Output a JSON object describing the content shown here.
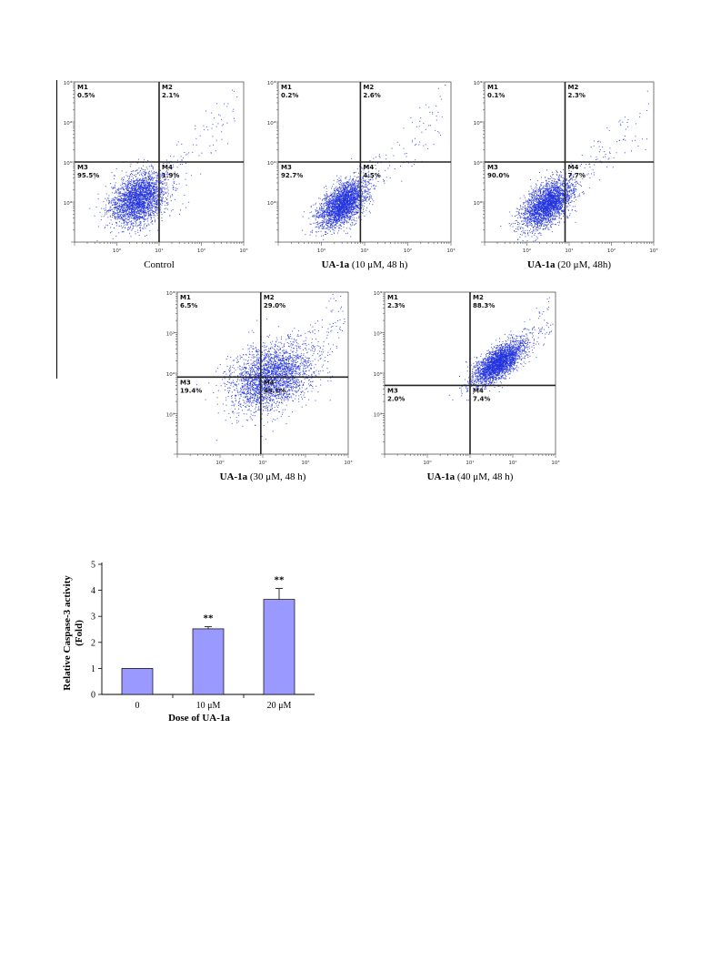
{
  "flow_panels": [
    {
      "caption_bold": "",
      "caption_rest": "Control",
      "y_ticks": [
        "10³",
        "10²",
        "10¹",
        "10⁰"
      ],
      "x_ticks": [
        "10⁰",
        "10¹",
        "10²",
        "10³"
      ],
      "quadrants": [
        {
          "label": "M1",
          "value": "0.5%"
        },
        {
          "label": "M2",
          "value": "2.1%"
        },
        {
          "label": "M3",
          "value": "95.5%"
        },
        {
          "label": "M4",
          "value": "1.9%"
        }
      ],
      "gate": {
        "x": 10,
        "y": 10
      },
      "population": {
        "cx": 3.2,
        "cy": 1.2,
        "sx": 0.33,
        "sy": 0.33,
        "rho": 0.3
      }
    },
    {
      "caption_bold": "UA-1a",
      "caption_rest": " (10 μM, 48 h)",
      "y_ticks": [
        "10³",
        "10²",
        "10¹",
        "10⁰"
      ],
      "x_ticks": [
        "10⁰",
        "10¹",
        "10²",
        "10³"
      ],
      "quadrants": [
        {
          "label": "M1",
          "value": "0.2%"
        },
        {
          "label": "M2",
          "value": "2.6%"
        },
        {
          "label": "M3",
          "value": "92.7%"
        },
        {
          "label": "M4",
          "value": "4.5%"
        }
      ],
      "gate": {
        "x": 8,
        "y": 10
      },
      "population": {
        "cx": 3.0,
        "cy": 0.9,
        "sx": 0.28,
        "sy": 0.3,
        "rho": 0.55
      }
    },
    {
      "caption_bold": "UA-1a",
      "caption_rest": " (20 μM, 48h)",
      "y_ticks": [
        "10³",
        "10²",
        "10¹",
        "10⁰"
      ],
      "x_ticks": [
        "10⁰",
        "10¹",
        "10²",
        "10³"
      ],
      "quadrants": [
        {
          "label": "M1",
          "value": "0.1%"
        },
        {
          "label": "M2",
          "value": "2.3%"
        },
        {
          "label": "M3",
          "value": "90.0%"
        },
        {
          "label": "M4",
          "value": "7.7%"
        }
      ],
      "gate": {
        "x": 8,
        "y": 10
      },
      "population": {
        "cx": 3.0,
        "cy": 0.9,
        "sx": 0.3,
        "sy": 0.32,
        "rho": 0.55
      }
    },
    {
      "caption_bold": "UA-1a",
      "caption_rest": " (30 μM, 48 h)",
      "y_ticks": [
        "10³",
        "10²",
        "10¹",
        "10⁰"
      ],
      "x_ticks": [
        "10⁰",
        "10¹",
        "10²",
        "10³"
      ],
      "quadrants": [
        {
          "label": "M1",
          "value": "6.5%"
        },
        {
          "label": "M2",
          "value": "29.0%"
        },
        {
          "label": "M3",
          "value": "19.4%"
        },
        {
          "label": "M4",
          "value": "45.1%"
        }
      ],
      "gate": {
        "x": 9,
        "y": 8
      },
      "population": {
        "cx": 15,
        "cy": 8,
        "sx": 0.48,
        "sy": 0.42,
        "rho": 0.3
      }
    },
    {
      "caption_bold": "UA-1a",
      "caption_rest": " (40 μM, 48 h)",
      "y_ticks": [
        "10³",
        "10²",
        "10¹",
        "10⁰"
      ],
      "x_ticks": [
        "10⁰",
        "10¹",
        "10²",
        "10³"
      ],
      "quadrants": [
        {
          "label": "M1",
          "value": "2.3%"
        },
        {
          "label": "M2",
          "value": "88.3%"
        },
        {
          "label": "M3",
          "value": "2.0%"
        },
        {
          "label": "M4",
          "value": "7.4%"
        }
      ],
      "gate": {
        "x": 10,
        "y": 5
      },
      "population": {
        "cx": 45,
        "cy": 18,
        "sx": 0.3,
        "sy": 0.27,
        "rho": 0.7
      }
    }
  ],
  "chart_data": {
    "type": "bar",
    "categories": [
      "0",
      "10 μM",
      "20 μM"
    ],
    "values": [
      1.0,
      2.52,
      3.65
    ],
    "errors": [
      0,
      0.08,
      0.42
    ],
    "significance": [
      "",
      "**",
      "**"
    ],
    "xlabel": "Dose of UA-1a",
    "ylabel": "Relative Caspase-3 activity",
    "ylabel2": "(Fold)",
    "yticks": [
      0,
      1,
      2,
      3,
      4,
      5
    ],
    "ylim": [
      0,
      5
    ],
    "bar_color": "#9999ff",
    "point_color": "#2233dd"
  }
}
